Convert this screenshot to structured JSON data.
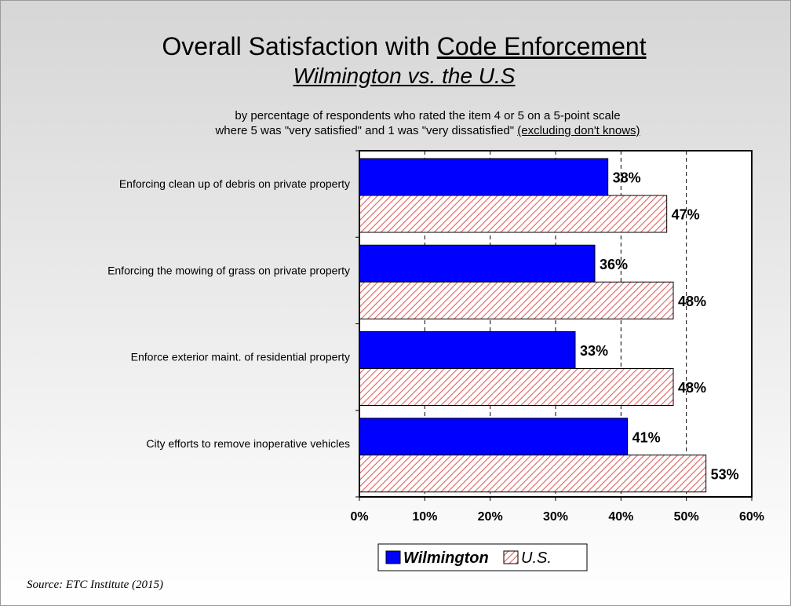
{
  "title_prefix": "Overall Satisfaction with ",
  "title_underlined": "Code Enforcement",
  "subtitle": "Wilmington vs. the U.S",
  "description_line1": "by percentage of respondents who rated the item 4 or 5 on a 5-point scale",
  "description_line2": "where 5 was \"very satisfied\" and 1 was \"very dissatisfied\"",
  "description_line2_underlined": "(excluding don't knows)",
  "source": "Source:  ETC Institute (2015)",
  "chart_data": {
    "type": "bar",
    "orientation": "horizontal",
    "categories": [
      "Enforcing clean up of debris on private property",
      "Enforcing the mowing of grass on private property",
      "Enforce exterior maint. of residential property",
      "City efforts to remove inoperative vehicles"
    ],
    "series": [
      {
        "name": "Wilmington",
        "values": [
          38,
          36,
          33,
          41
        ],
        "color": "#0000ff",
        "pattern": "solid"
      },
      {
        "name": "U.S.",
        "values": [
          47,
          48,
          48,
          53
        ],
        "color": "#f08080",
        "pattern": "diagonal-hatch"
      }
    ],
    "value_labels": [
      [
        "38%",
        "36%",
        "33%",
        "41%"
      ],
      [
        "47%",
        "48%",
        "48%",
        "53%"
      ]
    ],
    "xlim": [
      0,
      60
    ],
    "x_ticks": [
      "0%",
      "10%",
      "20%",
      "30%",
      "40%",
      "50%",
      "60%"
    ],
    "gridlines": "dashed, vertical",
    "legend_position": "bottom"
  }
}
